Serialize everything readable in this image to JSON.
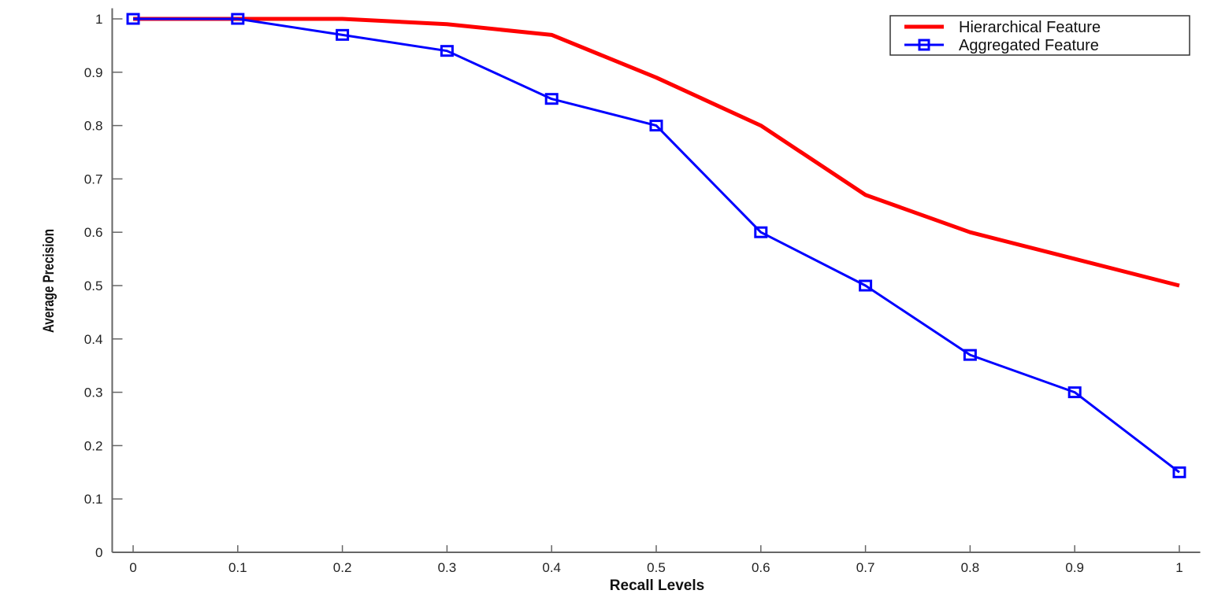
{
  "chart_data": {
    "type": "line",
    "title": "",
    "xlabel": "Recall Levels",
    "ylabel": "Average Precision",
    "xlim": [
      -0.02,
      1.02
    ],
    "ylim": [
      0,
      1.02
    ],
    "xticks": [
      "0",
      "0.1",
      "0.2",
      "0.3",
      "0.4",
      "0.5",
      "0.6",
      "0.7",
      "0.8",
      "0.9",
      "1"
    ],
    "yticks": [
      "0",
      "0.1",
      "0.2",
      "0.3",
      "0.4",
      "0.5",
      "0.6",
      "0.7",
      "0.8",
      "0.9",
      "1"
    ],
    "x": [
      0,
      0.1,
      0.2,
      0.3,
      0.4,
      0.5,
      0.6,
      0.7,
      0.8,
      0.9,
      1.0
    ],
    "grid": false,
    "legend_position": "top-right",
    "series": [
      {
        "name": "Hierarchical Feature",
        "color": "#ff0000",
        "marker": "none",
        "values": [
          1.0,
          1.0,
          1.0,
          0.99,
          0.97,
          0.89,
          0.8,
          0.67,
          0.6,
          0.55,
          0.5
        ]
      },
      {
        "name": "Aggregated Feature",
        "color": "#0000ff",
        "marker": "square",
        "values": [
          1.0,
          1.0,
          0.97,
          0.94,
          0.85,
          0.8,
          0.6,
          0.5,
          0.37,
          0.3,
          0.15
        ]
      }
    ]
  }
}
